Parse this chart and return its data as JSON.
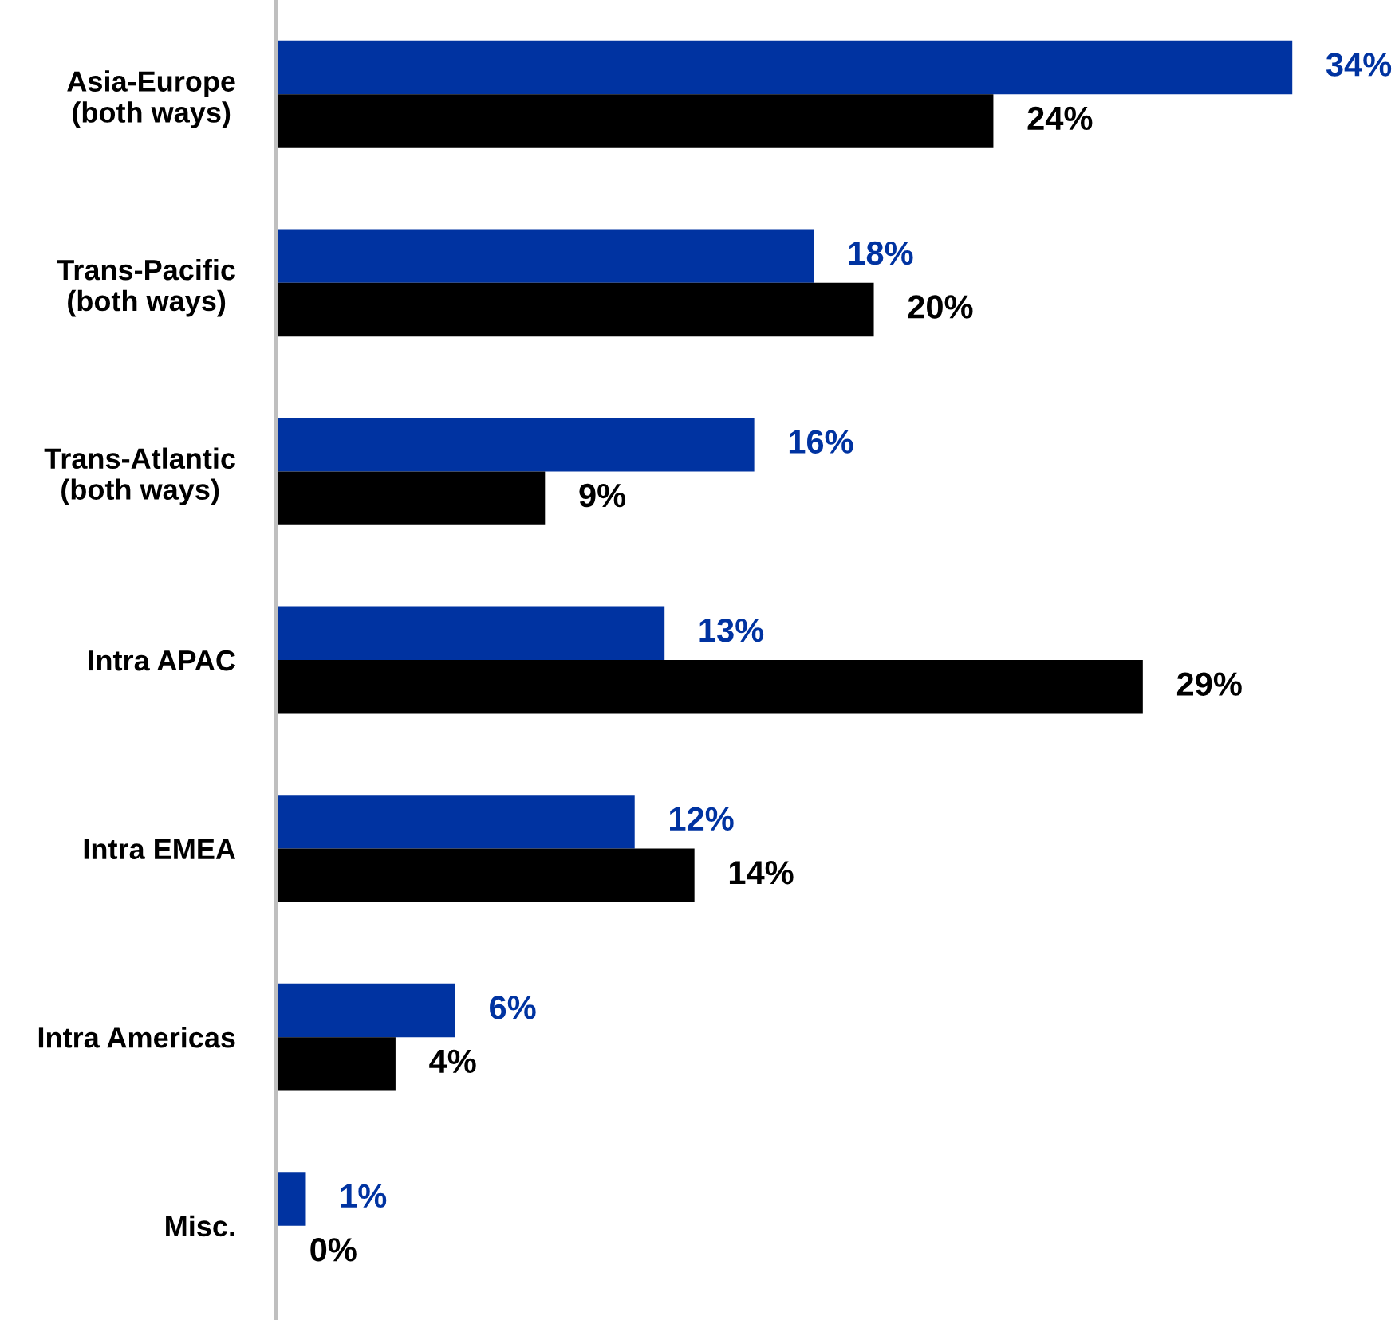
{
  "chart_data": {
    "type": "bar",
    "orientation": "horizontal",
    "categories": [
      "Asia-Europe\n(both ways)",
      "Trans-Pacific\n(both ways)",
      "Trans-Atlantic\n(both ways)",
      "Intra APAC",
      "Intra EMEA",
      "Intra Americas",
      "Misc."
    ],
    "series": [
      {
        "color": "#0033a1",
        "values": [
          34,
          18,
          16,
          13,
          12,
          6,
          1
        ],
        "value_labels": [
          "34%",
          "18%",
          "16%",
          "13%",
          "12%",
          "6%",
          "1%"
        ]
      },
      {
        "color": "#000000",
        "values": [
          24,
          20,
          9,
          29,
          14,
          4,
          0
        ],
        "value_labels": [
          "24%",
          "20%",
          "9%",
          "29%",
          "14%",
          "4%",
          "0%"
        ]
      }
    ],
    "grid": false
  }
}
